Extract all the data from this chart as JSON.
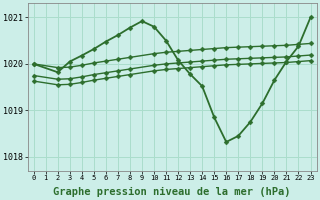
{
  "background_color": "#cceee8",
  "grid_color": "#aaddcc",
  "line_color": "#2d6e2d",
  "marker_color": "#2d6e2d",
  "xlabel": "Graphe pression niveau de la mer (hPa)",
  "xlabel_fontsize": 7.5,
  "ylim": [
    1017.7,
    1021.3
  ],
  "xlim": [
    -0.5,
    23.5
  ],
  "yticks": [
    1018,
    1019,
    1020,
    1021
  ],
  "xticks": [
    0,
    1,
    2,
    3,
    4,
    5,
    6,
    7,
    8,
    9,
    10,
    11,
    12,
    13,
    14,
    15,
    16,
    17,
    18,
    19,
    20,
    21,
    22,
    23
  ],
  "series": [
    {
      "x": [
        0,
        2,
        3,
        4,
        5,
        6,
        7,
        8,
        10,
        11,
        12,
        13,
        14,
        15,
        16,
        17,
        18,
        19,
        20,
        21,
        22,
        23
      ],
      "y": [
        1020.0,
        1019.92,
        1019.93,
        1019.97,
        1020.02,
        1020.06,
        1020.1,
        1020.14,
        1020.22,
        1020.25,
        1020.27,
        1020.29,
        1020.31,
        1020.33,
        1020.35,
        1020.36,
        1020.37,
        1020.38,
        1020.39,
        1020.4,
        1020.42,
        1020.44
      ],
      "linewidth": 1.0,
      "marker": "D",
      "markersize": 2.5
    },
    {
      "x": [
        0,
        2,
        3,
        4,
        5,
        6,
        7,
        8,
        10,
        11,
        12,
        13,
        14,
        15,
        16,
        17,
        18,
        19,
        20,
        21,
        22,
        23
      ],
      "y": [
        1019.75,
        1019.67,
        1019.68,
        1019.72,
        1019.77,
        1019.81,
        1019.85,
        1019.89,
        1019.97,
        1020.0,
        1020.02,
        1020.04,
        1020.06,
        1020.08,
        1020.1,
        1020.11,
        1020.12,
        1020.13,
        1020.14,
        1020.15,
        1020.17,
        1020.19
      ],
      "linewidth": 1.0,
      "marker": "D",
      "markersize": 2.5
    },
    {
      "x": [
        0,
        2,
        3,
        4,
        5,
        6,
        7,
        8,
        10,
        11,
        12,
        13,
        14,
        15,
        16,
        17,
        18,
        19,
        20,
        21,
        22,
        23
      ],
      "y": [
        1019.63,
        1019.55,
        1019.56,
        1019.6,
        1019.65,
        1019.69,
        1019.73,
        1019.77,
        1019.85,
        1019.88,
        1019.9,
        1019.92,
        1019.94,
        1019.96,
        1019.98,
        1019.99,
        1020.0,
        1020.01,
        1020.02,
        1020.03,
        1020.05,
        1020.07
      ],
      "linewidth": 1.0,
      "marker": "D",
      "markersize": 2.5
    },
    {
      "x": [
        0,
        2,
        3,
        4,
        5,
        6,
        7,
        8,
        9,
        10,
        11,
        12,
        13,
        14,
        15,
        16,
        17,
        18,
        19,
        20,
        21,
        22,
        23
      ],
      "y": [
        1020.0,
        1019.82,
        1020.05,
        1020.18,
        1020.32,
        1020.48,
        1020.62,
        1020.78,
        1020.92,
        1020.8,
        1020.5,
        1020.08,
        1019.78,
        1019.52,
        1018.85,
        1018.32,
        1018.45,
        1018.75,
        1019.15,
        1019.65,
        1020.05,
        1020.38,
        1021.0
      ],
      "linewidth": 1.3,
      "marker": "D",
      "markersize": 2.5
    }
  ]
}
